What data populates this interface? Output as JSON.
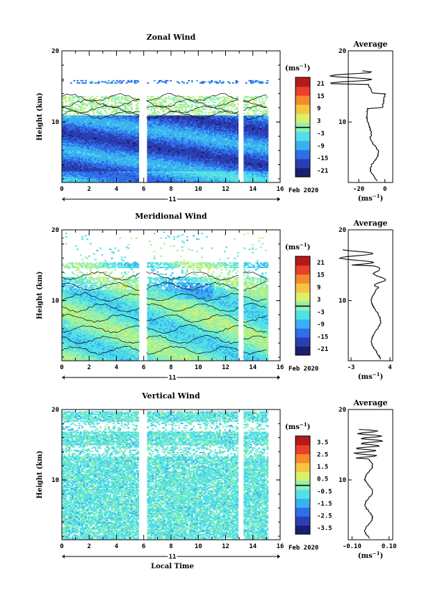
{
  "chart_data": [
    {
      "type": "heatmap",
      "title": "Zonal Wind",
      "ylabel": "Height (km)",
      "y_ticks": [
        "10",
        "20"
      ],
      "ylim": [
        1.5,
        20
      ],
      "x_ticks": [
        "0",
        "2",
        "4",
        "6",
        "8",
        "10",
        "12",
        "14",
        "16"
      ],
      "xlim": [
        0,
        16
      ],
      "day_label": "11",
      "date_label": "Feb 2020",
      "colorbar": {
        "unit": "(ms",
        "unit_exp": "−1",
        "unit_close": ")",
        "ticks": [
          "21",
          "15",
          "9",
          "3",
          "-3",
          "-9",
          "-15",
          "-21"
        ],
        "range": [
          -24,
          24
        ]
      },
      "data_gaps": [
        [
          5.7,
          6.2
        ],
        [
          12.95,
          13.3
        ]
      ],
      "data_end": 15.0,
      "average": {
        "title": "Average",
        "xticks": [
          "-20",
          "0"
        ],
        "xlim": [
          -28,
          6
        ],
        "xlabel": "(ms",
        "xlabel_exp": "−1",
        "xlabel_close": ")",
        "yticks": [
          "10",
          "20"
        ]
      }
    },
    {
      "type": "heatmap",
      "title": "Meridional Wind",
      "ylabel": "Height (km)",
      "y_ticks": [
        "10",
        "20"
      ],
      "ylim": [
        1.5,
        20
      ],
      "x_ticks": [
        "0",
        "2",
        "4",
        "6",
        "8",
        "10",
        "12",
        "14",
        "16"
      ],
      "xlim": [
        0,
        16
      ],
      "day_label": "11",
      "date_label": "Feb 2020",
      "colorbar": {
        "unit": "(ms",
        "unit_exp": "−1",
        "unit_close": ")",
        "ticks": [
          "21",
          "15",
          "9",
          "3",
          "-3",
          "-9",
          "-15",
          "-21"
        ],
        "range": [
          -24,
          24
        ]
      },
      "data_gaps": [
        [
          5.7,
          6.2
        ],
        [
          12.95,
          13.3
        ]
      ],
      "data_end": 15.0,
      "average": {
        "title": "Average",
        "xticks": [
          "-3",
          "4"
        ],
        "xlim": [
          -3.5,
          4.5
        ],
        "xlabel": "(ms",
        "xlabel_exp": "−1",
        "xlabel_close": ")",
        "yticks": [
          "10",
          "20"
        ]
      }
    },
    {
      "type": "heatmap",
      "title": "Vertical Wind",
      "ylabel": "Height (km)",
      "y_ticks": [
        "10",
        "20"
      ],
      "ylim": [
        1.5,
        20
      ],
      "x_ticks": [
        "0",
        "2",
        "4",
        "6",
        "8",
        "10",
        "12",
        "14",
        "16"
      ],
      "xlim": [
        0,
        16
      ],
      "xlabel": "Local Time",
      "day_label": "11",
      "date_label": "Feb 2020",
      "colorbar": {
        "unit": "(ms",
        "unit_exp": "−1",
        "unit_close": ")",
        "ticks": [
          "3.5",
          "2.5",
          "1.5",
          "0.5",
          "-0.5",
          "-1.5",
          "-2.5",
          "-3.5"
        ],
        "range": [
          -4,
          4
        ]
      },
      "data_gaps": [
        [
          5.7,
          6.2
        ],
        [
          12.95,
          13.3
        ]
      ],
      "data_end": 15.0,
      "average": {
        "title": "Average",
        "xticks": [
          "-0.10",
          "0.10"
        ],
        "xlim": [
          -0.12,
          0.12
        ],
        "xlabel": "(ms",
        "xlabel_exp": "−1",
        "xlabel_close": ")",
        "yticks": [
          "10",
          "20"
        ]
      }
    }
  ],
  "colors": {
    "palette": [
      "#1a1f6e",
      "#2b3fb3",
      "#2f6fe8",
      "#3ab0f0",
      "#52e0e8",
      "#8ff0b0",
      "#d8f06a",
      "#f5c542",
      "#f58a2c",
      "#e8402a",
      "#b51a1a"
    ]
  }
}
